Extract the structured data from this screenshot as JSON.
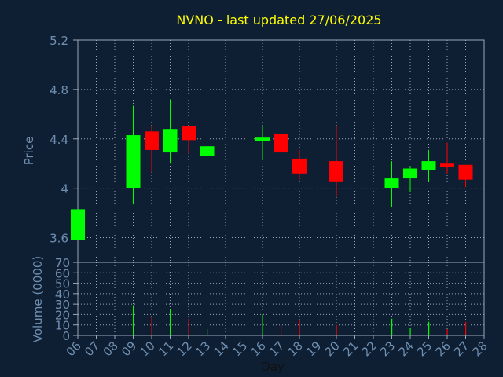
{
  "chart_data": [
    {
      "type": "candlestick",
      "title": "NVNO - last updated 27/06/2025",
      "ylabel": "Price",
      "ylim": [
        3.4,
        5.2
      ],
      "yticks": [
        "3.6",
        "4",
        "4.4",
        "4.8",
        "5.2"
      ],
      "ytick_values": [
        3.6,
        4.0,
        4.4,
        4.8,
        5.2
      ],
      "grid": true,
      "up_color": "#00ff00",
      "down_color": "#ff0000",
      "candles": [
        {
          "day": "06",
          "open": 3.58,
          "close": 3.83,
          "high": 3.83,
          "low": 3.58
        },
        {
          "day": "09",
          "open": 4.0,
          "close": 4.43,
          "high": 4.67,
          "low": 3.87
        },
        {
          "day": "10",
          "open": 4.46,
          "close": 4.31,
          "high": 4.5,
          "low": 4.13
        },
        {
          "day": "11",
          "open": 4.29,
          "close": 4.48,
          "high": 4.72,
          "low": 4.2
        },
        {
          "day": "12",
          "open": 4.5,
          "close": 4.39,
          "high": 4.5,
          "low": 4.28
        },
        {
          "day": "13",
          "open": 4.26,
          "close": 4.34,
          "high": 4.54,
          "low": 4.18
        },
        {
          "day": "16",
          "open": 4.38,
          "close": 4.41,
          "high": 4.51,
          "low": 4.23
        },
        {
          "day": "17",
          "open": 4.44,
          "close": 4.29,
          "high": 4.52,
          "low": 4.28
        },
        {
          "day": "18",
          "open": 4.24,
          "close": 4.12,
          "high": 4.31,
          "low": 4.07
        },
        {
          "day": "20",
          "open": 4.22,
          "close": 4.05,
          "high": 4.5,
          "low": 3.93
        },
        {
          "day": "23",
          "open": 4.0,
          "close": 4.08,
          "high": 4.22,
          "low": 3.85
        },
        {
          "day": "24",
          "open": 4.08,
          "close": 4.16,
          "high": 4.18,
          "low": 3.97
        },
        {
          "day": "25",
          "open": 4.15,
          "close": 4.22,
          "high": 4.31,
          "low": 4.05
        },
        {
          "day": "26",
          "open": 4.2,
          "close": 4.17,
          "high": 4.37,
          "low": 4.12
        },
        {
          "day": "27",
          "open": 4.19,
          "close": 4.07,
          "high": 4.19,
          "low": 4.01
        }
      ]
    },
    {
      "type": "bar",
      "ylabel": "Volume (0000)",
      "xlabel": "Day",
      "ylim": [
        0,
        70
      ],
      "yticks": [
        "0",
        "10",
        "20",
        "30",
        "40",
        "50",
        "60",
        "70"
      ],
      "ytick_values": [
        0,
        10,
        20,
        30,
        40,
        50,
        60,
        70
      ],
      "categories": [
        "06",
        "07",
        "08",
        "09",
        "10",
        "11",
        "12",
        "13",
        "14",
        "15",
        "16",
        "17",
        "18",
        "19",
        "20",
        "21",
        "22",
        "23",
        "24",
        "25",
        "26",
        "27",
        "28"
      ],
      "bars": [
        {
          "day": "06",
          "value": 0.5,
          "direction": "up"
        },
        {
          "day": "09",
          "value": 29,
          "direction": "up"
        },
        {
          "day": "10",
          "value": 18,
          "direction": "down"
        },
        {
          "day": "11",
          "value": 25,
          "direction": "up"
        },
        {
          "day": "12",
          "value": 16,
          "direction": "down"
        },
        {
          "day": "13",
          "value": 6,
          "direction": "up"
        },
        {
          "day": "16",
          "value": 20,
          "direction": "up"
        },
        {
          "day": "17",
          "value": 9,
          "direction": "down"
        },
        {
          "day": "18",
          "value": 15,
          "direction": "down"
        },
        {
          "day": "20",
          "value": 10,
          "direction": "down"
        },
        {
          "day": "23",
          "value": 16,
          "direction": "up"
        },
        {
          "day": "24",
          "value": 7,
          "direction": "up"
        },
        {
          "day": "25",
          "value": 13,
          "direction": "up"
        },
        {
          "day": "26",
          "value": 6,
          "direction": "down"
        },
        {
          "day": "27",
          "value": 13,
          "direction": "down"
        }
      ]
    }
  ],
  "colors": {
    "background": "#0f1f33",
    "text": "#6f8fb0",
    "title": "#ffff00",
    "axis_title": "#111111",
    "frame": "#9aa8b8",
    "grid": "#9aa8b8"
  }
}
